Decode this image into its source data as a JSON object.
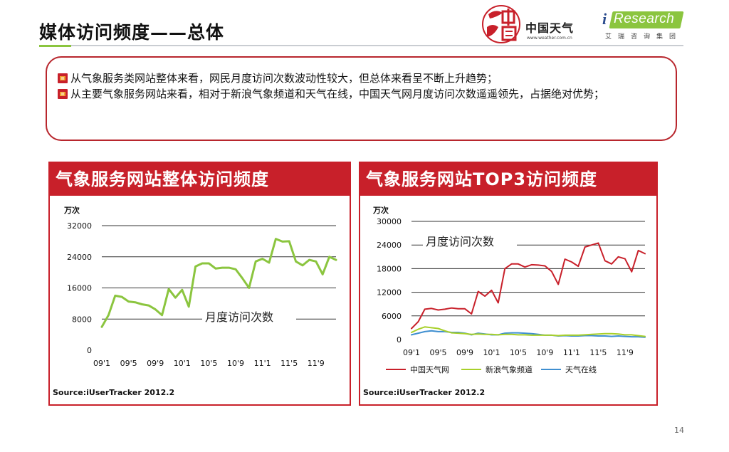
{
  "slide": {
    "title": "媒体访问频度——总体",
    "page_number": "14"
  },
  "logos": {
    "cw_name": "中国天气",
    "cw_url": "www.weather.com.cn",
    "ir_word": "Research",
    "ir_i": "i",
    "ir_cn": "艾瑞咨询集团"
  },
  "bullets": [
    "从气象服务类网站整体来看，网民月度访问次数波动性较大，但总体来看呈不断上升趋势；",
    "从主要气象服务网站来看，相对于新浪气象频道和天气在线，中国天气网月度访问次数遥遥领先，占据绝对优势；"
  ],
  "colors": {
    "accent_red": "#c8202a",
    "accent_green": "#8bc53f",
    "line_red": "#c8202a",
    "line_green": "#a8d02a",
    "line_blue": "#3f8fd0"
  },
  "chart_data": [
    {
      "type": "line",
      "title": "气象服务网站整体访问频度",
      "unit_label": "万次",
      "series_label": "月度访问次数",
      "source": "Source:iUserTracker 2012.2",
      "ylim": [
        0,
        32000
      ],
      "yticks": [
        "0",
        "8000",
        "16000",
        "24000",
        "32000"
      ],
      "xticks": [
        "09'1",
        "09'5",
        "09'9",
        "10'1",
        "10'5",
        "10'9",
        "11'1",
        "11'5",
        "11'9"
      ],
      "x": [
        "09'1",
        "09'2",
        "09'3",
        "09'4",
        "09'5",
        "09'6",
        "09'7",
        "09'8",
        "09'9",
        "09'10",
        "09'11",
        "09'12",
        "10'1",
        "10'2",
        "10'3",
        "10'4",
        "10'5",
        "10'6",
        "10'7",
        "10'8",
        "10'9",
        "10'10",
        "10'11",
        "10'12",
        "11'1",
        "11'2",
        "11'3",
        "11'4",
        "11'5",
        "11'6",
        "11'7",
        "11'8",
        "11'9",
        "11'10",
        "11'11",
        "11'12"
      ],
      "series": [
        {
          "values": [
            6000,
            9000,
            14000,
            13700,
            12500,
            12300,
            11800,
            11500,
            10500,
            9000,
            15700,
            13500,
            15500,
            11200,
            21500,
            22300,
            22300,
            21000,
            21200,
            21200,
            20800,
            18500,
            16000,
            22800,
            23500,
            22500,
            28600,
            27900,
            28000,
            22800,
            21800,
            23200,
            22800,
            19500,
            24000,
            23200
          ]
        }
      ]
    },
    {
      "type": "line",
      "title": "气象服务网站TOP3访问频度",
      "unit_label": "万次",
      "series_label": "月度访问次数",
      "source": "Source:iUserTracker 2012.2",
      "ylim": [
        0,
        30000
      ],
      "yticks": [
        "0",
        "6000",
        "12000",
        "18000",
        "24000",
        "30000"
      ],
      "xticks": [
        "09'1",
        "09'5",
        "09'9",
        "10'1",
        "10'5",
        "10'9",
        "11'1",
        "11'5",
        "11'9"
      ],
      "x": [
        "09'1",
        "09'2",
        "09'3",
        "09'4",
        "09'5",
        "09'6",
        "09'7",
        "09'8",
        "09'9",
        "09'10",
        "09'11",
        "09'12",
        "10'1",
        "10'2",
        "10'3",
        "10'4",
        "10'5",
        "10'6",
        "10'7",
        "10'8",
        "10'9",
        "10'10",
        "10'11",
        "10'12",
        "11'1",
        "11'2",
        "11'3",
        "11'4",
        "11'5",
        "11'6",
        "11'7",
        "11'8",
        "11'9",
        "11'10",
        "11'11",
        "11'12"
      ],
      "series": [
        {
          "name": "中国天气网",
          "values": [
            2800,
            4500,
            7700,
            7900,
            7500,
            7700,
            8000,
            7800,
            7800,
            6500,
            12200,
            11000,
            12500,
            9300,
            18000,
            19200,
            19200,
            18400,
            19000,
            18900,
            18700,
            17300,
            14000,
            20400,
            19700,
            18600,
            23500,
            24000,
            24500,
            20000,
            19200,
            21000,
            20500,
            17200,
            22600,
            21800
          ]
        },
        {
          "name": "新浪气象频道",
          "values": [
            1800,
            2600,
            3200,
            3000,
            2800,
            2200,
            1700,
            1600,
            1500,
            1300,
            1400,
            1300,
            1300,
            1200,
            1300,
            1300,
            1200,
            1200,
            1100,
            1100,
            1100,
            1100,
            1000,
            1100,
            1100,
            1100,
            1200,
            1300,
            1400,
            1500,
            1500,
            1400,
            1200,
            1200,
            1000,
            800
          ]
        },
        {
          "name": "天气在线",
          "values": [
            1200,
            1600,
            2000,
            2200,
            2000,
            2000,
            1800,
            1800,
            1600,
            1200,
            1600,
            1400,
            1200,
            1200,
            1600,
            1700,
            1700,
            1600,
            1500,
            1300,
            1100,
            1100,
            900,
            1000,
            900,
            900,
            1000,
            1000,
            900,
            900,
            800,
            900,
            800,
            700,
            700,
            600
          ]
        }
      ]
    }
  ]
}
